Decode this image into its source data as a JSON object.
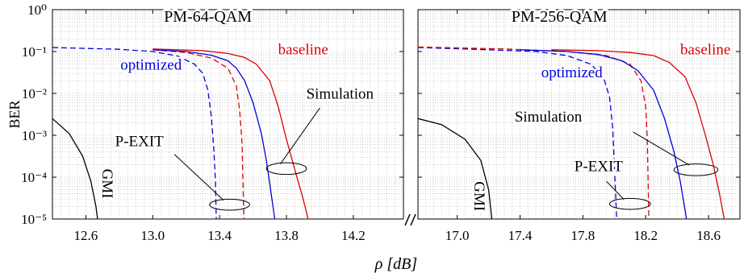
{
  "chart_data": {
    "type": "line",
    "ylabel": "BER",
    "xlabel": "ρ [dB]",
    "yscale": "log",
    "ylim": [
      1e-05,
      1
    ],
    "grid": true,
    "y_tick_labels": [
      "10⁰",
      "10⁻¹",
      "10⁻²",
      "10⁻³",
      "10⁻⁴",
      "10⁻⁵"
    ],
    "y_tick_values": [
      1,
      0.1,
      0.01,
      0.001,
      0.0001,
      1e-05
    ],
    "panels": [
      {
        "title": "PM-64-QAM",
        "xlim": [
          12.4,
          14.5
        ],
        "x_ticks": [
          12.6,
          13.0,
          13.4,
          13.8,
          14.2
        ],
        "x_tick_labels": [
          "12.6",
          "13.0",
          "13.4",
          "13.8",
          "14.2"
        ],
        "series": [
          {
            "name": "GMI",
            "color": "#000000",
            "dash": "solid",
            "points": [
              [
                12.4,
                0.0025
              ],
              [
                12.5,
                0.0011
              ],
              [
                12.58,
                0.00032
              ],
              [
                12.63,
                8e-05
              ],
              [
                12.66,
                2e-05
              ],
              [
                12.67,
                1e-05
              ]
            ]
          },
          {
            "name": "optimized",
            "kind": "P-EXIT",
            "color": "#0000dd",
            "dash": "dashed",
            "points": [
              [
                12.4,
                0.125
              ],
              [
                12.8,
                0.113
              ],
              [
                13.0,
                0.1
              ],
              [
                13.15,
                0.078
              ],
              [
                13.25,
                0.05
              ],
              [
                13.3,
                0.03
              ],
              [
                13.33,
                0.012
              ],
              [
                13.35,
                0.003
              ],
              [
                13.365,
                0.0005
              ],
              [
                13.375,
                8e-05
              ],
              [
                13.38,
                1e-05
              ]
            ]
          },
          {
            "name": "baseline",
            "kind": "P-EXIT",
            "color": "#dd0000",
            "dash": "dashed",
            "points": [
              [
                13.0,
                0.11
              ],
              [
                13.2,
                0.095
              ],
              [
                13.35,
                0.07
              ],
              [
                13.45,
                0.04
              ],
              [
                13.5,
                0.015
              ],
              [
                13.52,
                0.004
              ],
              [
                13.535,
                0.0006
              ],
              [
                13.54,
                8e-05
              ],
              [
                13.545,
                1e-05
              ]
            ]
          },
          {
            "name": "optimized",
            "kind": "Simulation",
            "color": "#0000dd",
            "dash": "solid",
            "points": [
              [
                13.0,
                0.11
              ],
              [
                13.2,
                0.1
              ],
              [
                13.35,
                0.082
              ],
              [
                13.45,
                0.06
              ],
              [
                13.5,
                0.04
              ],
              [
                13.55,
                0.02
              ],
              [
                13.6,
                0.006
              ],
              [
                13.65,
                0.0011
              ],
              [
                13.68,
                0.00025
              ],
              [
                13.7,
                7e-05
              ],
              [
                13.73,
                1e-05
              ]
            ]
          },
          {
            "name": "baseline",
            "kind": "Simulation",
            "color": "#dd0000",
            "dash": "solid",
            "points": [
              [
                13.0,
                0.115
              ],
              [
                13.3,
                0.105
              ],
              [
                13.45,
                0.09
              ],
              [
                13.55,
                0.072
              ],
              [
                13.62,
                0.05
              ],
              [
                13.7,
                0.02
              ],
              [
                13.75,
                0.005
              ],
              [
                13.8,
                0.0008
              ],
              [
                13.85,
                0.00015
              ],
              [
                13.9,
                3e-05
              ],
              [
                13.93,
                1e-05
              ]
            ]
          }
        ],
        "labels": [
          {
            "text": "PM-64-QAM",
            "x": 13.33,
            "y": 0.52,
            "color": "#000000",
            "size": 20
          },
          {
            "text": "baseline",
            "x": 13.9,
            "y": 0.085,
            "color": "#dd0000",
            "size": 19
          },
          {
            "text": "optimized",
            "x": 12.99,
            "y": 0.037,
            "color": "#0000dd",
            "size": 19
          },
          {
            "text": "Simulation",
            "x": 14.12,
            "y": 0.0075,
            "color": "#000000",
            "size": 19
          },
          {
            "text": "P-EXIT",
            "x": 12.92,
            "y": 0.00055,
            "color": "#000000",
            "size": 19
          },
          {
            "text": "GMI",
            "x": 12.7,
            "y": 7e-05,
            "color": "#000000",
            "size": 19,
            "rotate": 90
          }
        ],
        "ellipses": [
          {
            "x": 13.8,
            "y": 0.00016,
            "rx": 0.12,
            "ry_dec": 0.14,
            "lx": 14.0,
            "ly": 0.0045
          },
          {
            "x": 13.46,
            "y": 2.2e-05,
            "rx": 0.12,
            "ry_dec": 0.13,
            "lx": 13.13,
            "ly": 0.00035
          }
        ]
      },
      {
        "title": "PM-256-QAM",
        "xlim": [
          16.75,
          18.8
        ],
        "x_ticks": [
          17.0,
          17.4,
          17.8,
          18.2,
          18.6
        ],
        "x_tick_labels": [
          "17.0",
          "17.4",
          "17.8",
          "18.2",
          "18.6"
        ],
        "series": [
          {
            "name": "GMI",
            "color": "#000000",
            "dash": "solid",
            "points": [
              [
                16.75,
                0.0025
              ],
              [
                16.9,
                0.0018
              ],
              [
                17.05,
                0.0008
              ],
              [
                17.15,
                0.00025
              ],
              [
                17.2,
                5e-05
              ],
              [
                17.22,
                1e-05
              ]
            ]
          },
          {
            "name": "optimized",
            "kind": "P-EXIT",
            "color": "#0000dd",
            "dash": "dashed",
            "points": [
              [
                16.75,
                0.125
              ],
              [
                17.2,
                0.11
              ],
              [
                17.5,
                0.1
              ],
              [
                17.7,
                0.08
              ],
              [
                17.85,
                0.05
              ],
              [
                17.93,
                0.025
              ],
              [
                17.97,
                0.008
              ],
              [
                17.99,
                0.0015
              ],
              [
                18.0,
                0.0002
              ],
              [
                18.01,
                3e-05
              ],
              [
                18.015,
                1e-05
              ]
            ]
          },
          {
            "name": "baseline",
            "kind": "P-EXIT",
            "color": "#dd0000",
            "dash": "dashed",
            "points": [
              [
                16.75,
                0.128
              ],
              [
                17.3,
                0.115
              ],
              [
                17.7,
                0.1
              ],
              [
                17.95,
                0.08
              ],
              [
                18.1,
                0.05
              ],
              [
                18.17,
                0.02
              ],
              [
                18.2,
                0.005
              ],
              [
                18.21,
                0.0008
              ],
              [
                18.215,
                0.0001
              ],
              [
                18.22,
                1e-05
              ]
            ]
          },
          {
            "name": "optimized",
            "kind": "Simulation",
            "color": "#0000dd",
            "dash": "solid",
            "points": [
              [
                17.4,
                0.11
              ],
              [
                17.7,
                0.1
              ],
              [
                17.9,
                0.085
              ],
              [
                18.05,
                0.06
              ],
              [
                18.15,
                0.035
              ],
              [
                18.25,
                0.012
              ],
              [
                18.32,
                0.0025
              ],
              [
                18.38,
                0.0004
              ],
              [
                18.42,
                8e-05
              ],
              [
                18.46,
                1e-05
              ]
            ]
          },
          {
            "name": "baseline",
            "kind": "Simulation",
            "color": "#dd0000",
            "dash": "solid",
            "points": [
              [
                17.6,
                0.11
              ],
              [
                17.9,
                0.105
              ],
              [
                18.1,
                0.095
              ],
              [
                18.25,
                0.08
              ],
              [
                18.35,
                0.055
              ],
              [
                18.45,
                0.025
              ],
              [
                18.52,
                0.006
              ],
              [
                18.58,
                0.001
              ],
              [
                18.63,
                0.0002
              ],
              [
                18.67,
                4e-05
              ],
              [
                18.7,
                1e-05
              ]
            ]
          }
        ],
        "labels": [
          {
            "text": "PM-256-QAM",
            "x": 17.65,
            "y": 0.52,
            "color": "#000000",
            "size": 20
          },
          {
            "text": "baseline",
            "x": 18.58,
            "y": 0.085,
            "color": "#dd0000",
            "size": 19
          },
          {
            "text": "optimized",
            "x": 17.73,
            "y": 0.024,
            "color": "#0000dd",
            "size": 19
          },
          {
            "text": "Simulation",
            "x": 17.58,
            "y": 0.0021,
            "color": "#000000",
            "size": 19
          },
          {
            "text": "P-EXIT",
            "x": 17.9,
            "y": 0.00014,
            "color": "#000000",
            "size": 19
          },
          {
            "text": "GMI",
            "x": 17.11,
            "y": 3.5e-05,
            "color": "#000000",
            "size": 19,
            "rotate": 90
          }
        ],
        "ellipses": [
          {
            "x": 18.52,
            "y": 0.00015,
            "rx": 0.14,
            "ry_dec": 0.14,
            "lx": 18.12,
            "ly": 0.0012
          },
          {
            "x": 18.1,
            "y": 2.3e-05,
            "rx": 0.13,
            "ry_dec": 0.13,
            "lx": 17.95,
            "ly": 8e-05
          }
        ]
      }
    ]
  }
}
